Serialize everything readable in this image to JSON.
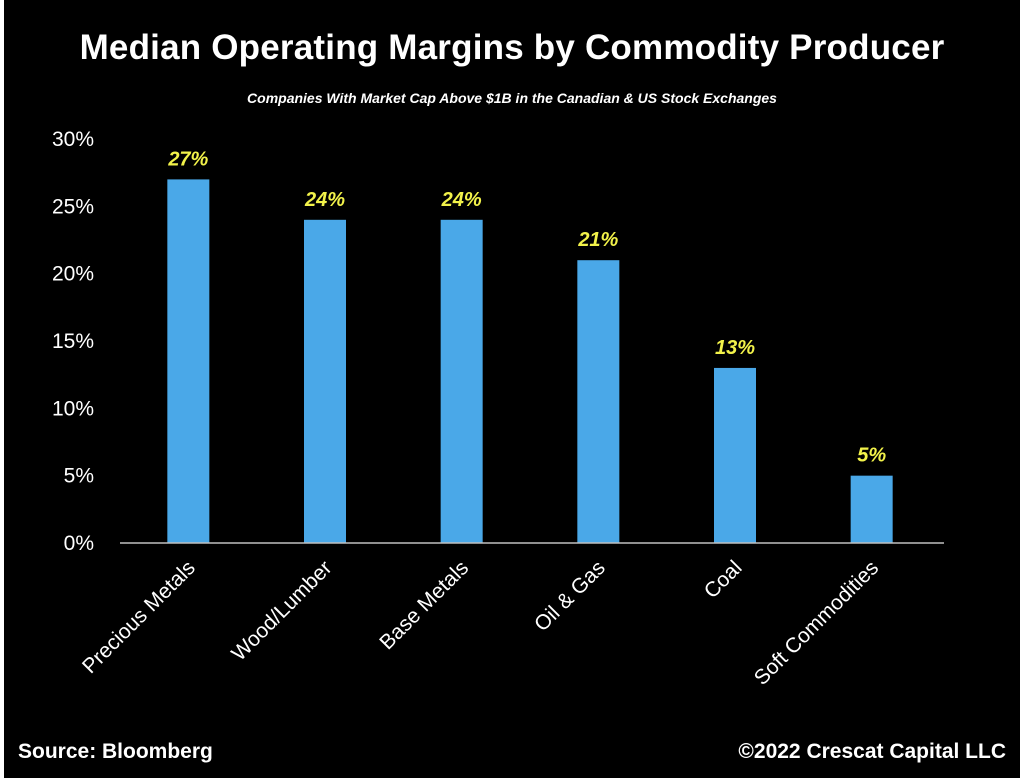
{
  "chart_data": {
    "type": "bar",
    "title": "Median Operating Margins by Commodity Producer",
    "subtitle": "Companies With Market Cap Above $1B in the Canadian & US Stock Exchanges",
    "categories": [
      "Precious Metals",
      "Wood/Lumber",
      "Base Metals",
      "Oil & Gas",
      "Coal",
      "Soft Commodities"
    ],
    "values": [
      27,
      24,
      24,
      21,
      13,
      5
    ],
    "value_labels": [
      "27%",
      "24%",
      "24%",
      "21%",
      "13%",
      "5%"
    ],
    "ylim": [
      0,
      30
    ],
    "yticks": [
      0,
      5,
      10,
      15,
      20,
      25,
      30
    ],
    "ytick_labels": [
      "0%",
      "5%",
      "10%",
      "15%",
      "20%",
      "25%",
      "30%"
    ],
    "xlabel": "",
    "ylabel": "",
    "grid": false,
    "legend": "none",
    "colors": {
      "background": "#000000",
      "bar": "#4aa8e8",
      "data_label": "#f2f24a",
      "text": "#ffffff",
      "axis": "#bfbfbf"
    }
  },
  "footer": {
    "source": "Source: Bloomberg",
    "copyright": "©2022 Crescat Capital LLC"
  }
}
